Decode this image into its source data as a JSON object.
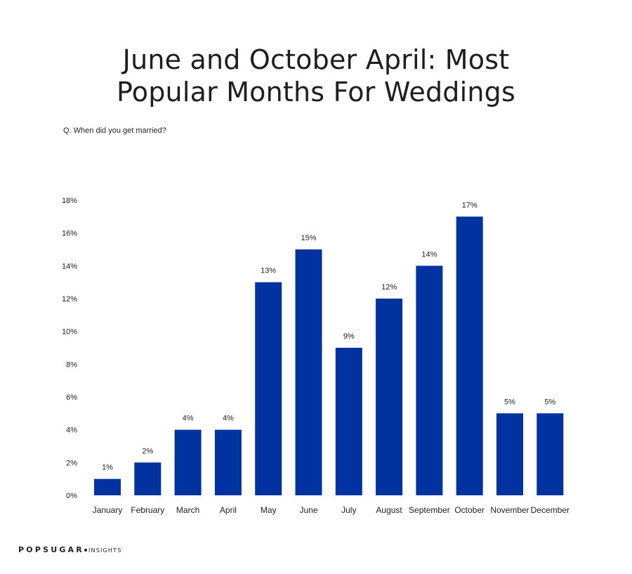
{
  "header": {
    "title_line1": "June and October April: Most",
    "title_line2": "Popular Months For Weddings",
    "subtitle": "Q. When did you get married?"
  },
  "brand": {
    "name": "POPSUGAR",
    "sub": "INSIGHTS"
  },
  "chart_data": {
    "type": "bar",
    "title": "June and October April: Most Popular Months For Weddings",
    "subtitle": "Q. When did you get married?",
    "xlabel": "",
    "ylabel": "",
    "categories": [
      "January",
      "February",
      "March",
      "April",
      "May",
      "June",
      "July",
      "August",
      "September",
      "October",
      "November",
      "December"
    ],
    "values": [
      1,
      2,
      4,
      4,
      13,
      15,
      9,
      12,
      14,
      17,
      5,
      5
    ],
    "data_labels": [
      "1%",
      "2%",
      "4%",
      "4%",
      "13%",
      "15%",
      "9%",
      "12%",
      "14%",
      "17%",
      "5%",
      "5%"
    ],
    "ylim": [
      0,
      18
    ],
    "yticks": [
      0,
      2,
      4,
      6,
      8,
      10,
      12,
      14,
      16,
      18
    ],
    "ytick_labels": [
      "0%",
      "2%",
      "4%",
      "6%",
      "8%",
      "10%",
      "12%",
      "14%",
      "16%",
      "18%"
    ],
    "grid": false,
    "legend": "none",
    "bar_color": "#0033a0"
  }
}
